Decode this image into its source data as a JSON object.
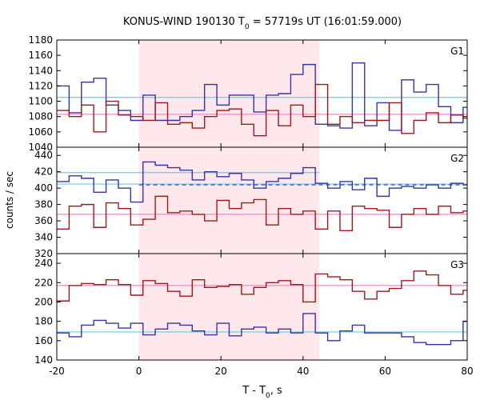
{
  "figure": {
    "title_prefix": "KONUS-WIND 190130 T",
    "title_sub": "0",
    "title_suffix": " = 57719s UT (16:01:59.000)",
    "ylabel": "counts / sec",
    "xlabel_prefix": "T - T",
    "xlabel_sub": "0",
    "xlabel_suffix": ", s"
  },
  "chart_data": {
    "type": "line",
    "style": "step",
    "xlim": [
      -20,
      80
    ],
    "xticks": [
      -20,
      0,
      20,
      40,
      60,
      80
    ],
    "shaded_interval": [
      0,
      44
    ],
    "colors": {
      "blue": "#3333aa",
      "red": "#a01818",
      "cyan": "#66ccee",
      "pink": "#ee88cc",
      "shade": "#ffe8ec",
      "dashed": "#3333aa"
    },
    "bin_edges": [
      -20,
      -17,
      -14,
      -11,
      -8,
      -5,
      -2,
      1,
      4,
      7,
      10,
      13,
      16,
      19,
      22,
      25,
      28,
      31,
      34,
      37,
      40,
      43,
      46,
      49,
      52,
      55,
      58,
      61,
      64,
      67,
      70,
      73,
      76,
      79,
      80
    ],
    "panels": [
      {
        "label": "G1",
        "ylim": [
          1040,
          1180
        ],
        "yticks": [
          1040,
          1060,
          1080,
          1100,
          1120,
          1140,
          1160,
          1180
        ],
        "series": [
          {
            "color": "blue",
            "values": [
              1120,
              1085,
              1125,
              1130,
              1095,
              1088,
              1075,
              1108,
              1075,
              1075,
              1080,
              1088,
              1122,
              1095,
              1108,
              1108,
              1086,
              1108,
              1110,
              1135,
              1148,
              1070,
              1068,
              1065,
              1150,
              1068,
              1098,
              1062,
              1128,
              1112,
              1122,
              1093,
              1072,
              1092
            ]
          },
          {
            "color": "red",
            "values": [
              1088,
              1080,
              1095,
              1060,
              1100,
              1082,
              1080,
              1075,
              1098,
              1070,
              1072,
              1065,
              1080,
              1088,
              1090,
              1070,
              1055,
              1088,
              1068,
              1095,
              1080,
              1122,
              1070,
              1080,
              1072,
              1075,
              1075,
              1098,
              1058,
              1075,
              1085,
              1072,
              1082,
              1078
            ]
          }
        ],
        "reference_lines": [
          {
            "color": "cyan",
            "y": 1105,
            "style": "solid"
          },
          {
            "color": "pink",
            "y": 1083,
            "style": "solid"
          }
        ]
      },
      {
        "label": "G2",
        "ylim": [
          320,
          450
        ],
        "yticks": [
          320,
          340,
          360,
          380,
          400,
          420,
          440
        ],
        "series": [
          {
            "color": "blue",
            "values": [
              408,
              415,
              412,
              395,
              410,
              400,
              383,
              432,
              428,
              425,
              422,
              410,
              420,
              414,
              418,
              410,
              400,
              408,
              412,
              418,
              425,
              406,
              400,
              408,
              398,
              412,
              390,
              400,
              402,
              400,
              404,
              400,
              406,
              404
            ]
          },
          {
            "color": "red",
            "values": [
              350,
              378,
              380,
              352,
              382,
              375,
              355,
              362,
              390,
              370,
              372,
              368,
              360,
              385,
              375,
              382,
              386,
              355,
              375,
              368,
              372,
              350,
              372,
              348,
              378,
              375,
              373,
              352,
              368,
              375,
              368,
              378,
              370,
              372
            ]
          }
        ],
        "reference_lines": [
          {
            "color": "cyan",
            "y": 419,
            "style": "solid",
            "x_range": [
              -20,
              44
            ]
          },
          {
            "color": "cyan",
            "y": 405,
            "style": "solid"
          },
          {
            "color": "pink",
            "y": 368,
            "style": "solid"
          },
          {
            "color": "dashed",
            "y": 404,
            "style": "dashed",
            "x_range": [
              0,
              80
            ]
          }
        ]
      },
      {
        "label": "G3",
        "ylim": [
          140,
          250
        ],
        "yticks": [
          140,
          160,
          180,
          200,
          220,
          240
        ],
        "series": [
          {
            "color": "blue",
            "values": [
              168,
              164,
              176,
              181,
              178,
              173,
              178,
              166,
              172,
              178,
              176,
              170,
              166,
              178,
              165,
              172,
              174,
              168,
              172,
              168,
              188,
              168,
              160,
              170,
              176,
              168,
              168,
              168,
              164,
              158,
              156,
              156,
              160,
              180
            ]
          },
          {
            "color": "red",
            "values": [
              201,
              217,
              219,
              218,
              223,
              218,
              207,
              222,
              219,
              211,
              206,
              223,
              215,
              216,
              218,
              208,
              215,
              220,
              222,
              218,
              200,
              229,
              226,
              223,
              211,
              203,
              211,
              214,
              222,
              232,
              228,
              217,
              208,
              212
            ]
          }
        ],
        "reference_lines": [
          {
            "color": "pink",
            "y": 217,
            "style": "solid"
          },
          {
            "color": "cyan",
            "y": 169,
            "style": "solid"
          }
        ]
      }
    ]
  }
}
